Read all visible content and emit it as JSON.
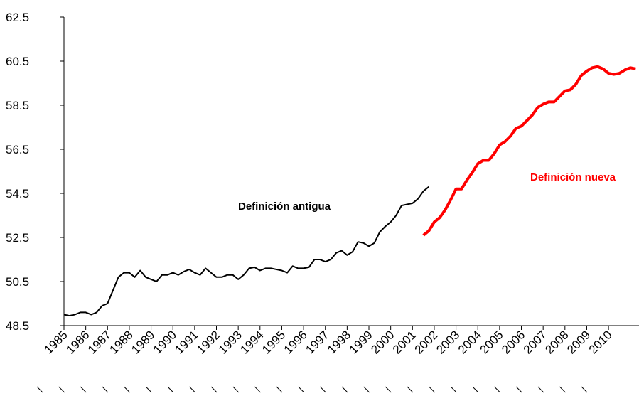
{
  "chart_data": {
    "type": "line",
    "x": [
      1985,
      1985.25,
      1985.5,
      1985.75,
      1986,
      1986.25,
      1986.5,
      1986.75,
      1987,
      1987.25,
      1987.5,
      1987.75,
      1988,
      1988.25,
      1988.5,
      1988.75,
      1989,
      1989.25,
      1989.5,
      1989.75,
      1990,
      1990.25,
      1990.5,
      1990.75,
      1991,
      1991.25,
      1991.5,
      1991.75,
      1992,
      1992.25,
      1992.5,
      1992.75,
      1993,
      1993.25,
      1993.5,
      1993.75,
      1994,
      1994.25,
      1994.5,
      1994.75,
      1995,
      1995.25,
      1995.5,
      1995.75,
      1996,
      1996.25,
      1996.5,
      1996.75,
      1997,
      1997.25,
      1997.5,
      1997.75,
      1998,
      1998.25,
      1998.5,
      1998.75,
      1999,
      1999.25,
      1999.5,
      1999.75,
      2000,
      2000.25,
      2000.5,
      2000.75,
      2001,
      2001.25,
      2001.5,
      2001.75,
      2002,
      2002.25,
      2002.5,
      2002.75,
      2003,
      2003.25,
      2003.5,
      2003.75,
      2004,
      2004.25,
      2004.5,
      2004.75,
      2005,
      2005.25,
      2005.5,
      2005.75,
      2006,
      2006.25,
      2006.5,
      2006.75,
      2007,
      2007.25,
      2007.5,
      2007.75,
      2008,
      2008.25,
      2008.5,
      2008.75,
      2009,
      2009.25,
      2009.5,
      2009.75,
      2010,
      2010.25,
      2010.5,
      2010.75,
      2011,
      2011.25
    ],
    "series": [
      {
        "name": "Definición antigua",
        "color": "#000000",
        "values": [
          49.0,
          48.95,
          49.0,
          49.1,
          49.1,
          49.0,
          49.1,
          49.4,
          49.5,
          50.1,
          50.7,
          50.9,
          50.9,
          50.7,
          51.0,
          50.7,
          50.6,
          50.5,
          50.8,
          50.8,
          50.9,
          50.8,
          50.95,
          51.05,
          50.9,
          50.8,
          51.1,
          50.9,
          50.7,
          50.7,
          50.8,
          50.8,
          50.6,
          50.8,
          51.1,
          51.15,
          51.0,
          51.1,
          51.1,
          51.05,
          51.0,
          50.9,
          51.2,
          51.1,
          51.1,
          51.15,
          51.5,
          51.5,
          51.4,
          51.5,
          51.8,
          51.9,
          51.7,
          51.85,
          52.3,
          52.25,
          52.1,
          52.25,
          52.75,
          53.0,
          53.2,
          53.5,
          53.95,
          54.0,
          54.05,
          54.25,
          54.6,
          54.8,
          null,
          null,
          null,
          null,
          null,
          null,
          null,
          null,
          null,
          null,
          null,
          null,
          null,
          null,
          null,
          null,
          null,
          null,
          null,
          null,
          null,
          null,
          null,
          null,
          null,
          null,
          null,
          null,
          null,
          null,
          null,
          null,
          null,
          null,
          null,
          null,
          null,
          null
        ]
      },
      {
        "name": "Definición nueva",
        "color": "#ff0000",
        "values": [
          null,
          null,
          null,
          null,
          null,
          null,
          null,
          null,
          null,
          null,
          null,
          null,
          null,
          null,
          null,
          null,
          null,
          null,
          null,
          null,
          null,
          null,
          null,
          null,
          null,
          null,
          null,
          null,
          null,
          null,
          null,
          null,
          null,
          null,
          null,
          null,
          null,
          null,
          null,
          null,
          null,
          null,
          null,
          null,
          null,
          null,
          null,
          null,
          null,
          null,
          null,
          null,
          null,
          null,
          null,
          null,
          null,
          null,
          null,
          null,
          null,
          null,
          null,
          null,
          null,
          null,
          52.6,
          52.8,
          53.2,
          53.4,
          53.75,
          54.2,
          54.7,
          54.7,
          55.1,
          55.45,
          55.85,
          56.0,
          56.0,
          56.3,
          56.7,
          56.85,
          57.1,
          57.45,
          57.55,
          57.8,
          58.05,
          58.4,
          58.55,
          58.65,
          58.65,
          58.9,
          59.15,
          59.2,
          59.45,
          59.85,
          60.05,
          60.2,
          60.25,
          60.15,
          59.95,
          59.9,
          59.95,
          60.1,
          60.2,
          60.15
        ]
      }
    ],
    "xlim": [
      1985,
      2011.4
    ],
    "xticks": [
      1985,
      1986,
      1987,
      1988,
      1989,
      1990,
      1991,
      1992,
      1993,
      1994,
      1995,
      1996,
      1997,
      1998,
      1999,
      2000,
      2001,
      2002,
      2003,
      2004,
      2005,
      2006,
      2007,
      2008,
      2009,
      2010
    ],
    "ylim": [
      48.5,
      62.5
    ],
    "yticks": [
      48.5,
      50.5,
      52.5,
      54.5,
      56.5,
      58.5,
      60.5,
      62.5
    ]
  }
}
